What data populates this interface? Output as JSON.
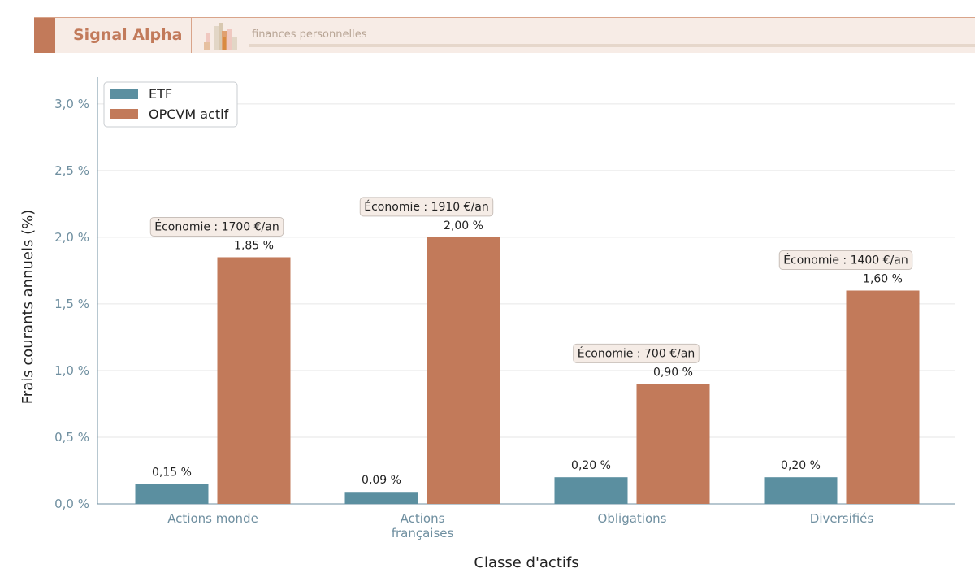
{
  "header": {
    "brand": "Signal Alpha",
    "tagline": "finances personnelles"
  },
  "chart_data": {
    "type": "bar",
    "title": "",
    "xlabel": "Classe d'actifs",
    "ylabel": "Frais courants annuels (%)",
    "ylim": [
      0,
      3.2
    ],
    "yticks": [
      0,
      0.5,
      1.0,
      1.5,
      2.0,
      2.5,
      3.0
    ],
    "ytick_labels": [
      "0,0 %",
      "0,5 %",
      "1,0 %",
      "1,5 %",
      "2,0 %",
      "2,5 %",
      "3,0 %"
    ],
    "grid": true,
    "legend_position": "top-left",
    "categories": [
      [
        "Actions monde"
      ],
      [
        "Actions",
        "françaises"
      ],
      [
        "Obligations"
      ],
      [
        "Diversifiés"
      ]
    ],
    "series": [
      {
        "name": "ETF",
        "color": "#5b8fa0",
        "values": [
          0.15,
          0.09,
          0.2,
          0.2
        ],
        "labels": [
          "0,15 %",
          "0,09 %",
          "0,20 %",
          "0,20 %"
        ]
      },
      {
        "name": "OPCVM actif",
        "color": "#c27a5a",
        "values": [
          1.85,
          2.0,
          0.9,
          1.6
        ],
        "labels": [
          "1,85 %",
          "2,00 %",
          "0,90 %",
          "1,60 %"
        ]
      }
    ],
    "annotations": [
      "Économie : 1700 €/an",
      "Économie : 1910 €/an",
      "Économie : 700 €/an",
      "Économie : 1400 €/an"
    ]
  }
}
